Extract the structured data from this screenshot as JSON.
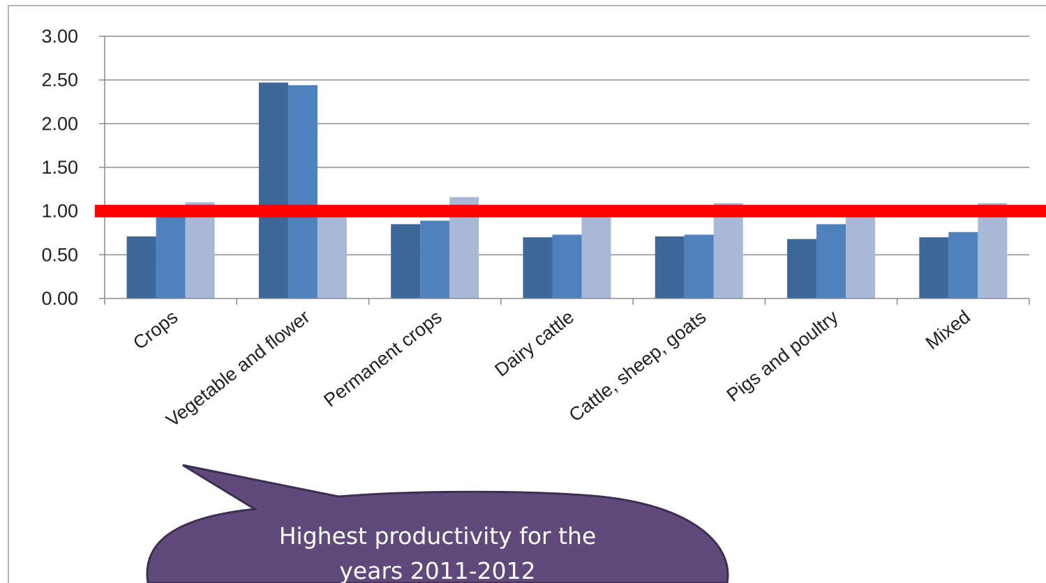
{
  "chart_data": {
    "type": "bar",
    "categories": [
      "Crops",
      "Vegetable and flower",
      "Permanent crops",
      "Dairy cattle",
      "Cattle, sheep, goats",
      "Pigs and poultry",
      "Mixed"
    ],
    "series": [
      {
        "values": [
          0.71,
          2.47,
          0.85,
          0.7,
          0.71,
          0.68,
          0.7
        ]
      },
      {
        "values": [
          1.0,
          2.44,
          0.89,
          0.73,
          0.73,
          0.85,
          0.76
        ]
      },
      {
        "values": [
          1.1,
          0.97,
          1.16,
          1.02,
          1.09,
          1.01,
          1.09
        ]
      }
    ],
    "colors": [
      "#3d6699",
      "#4f81bd",
      "#aab8d7"
    ],
    "ylim": [
      0,
      3.0
    ],
    "yticks": [
      "0.00",
      "0.50",
      "1.00",
      "1.50",
      "2.00",
      "2.50",
      "3.00"
    ],
    "grid": true,
    "reference_line": {
      "value": 1.0,
      "color": "#ff0000"
    },
    "annotation": {
      "lines": [
        "Highest productivity for the",
        "years 2011-2012"
      ],
      "fill": "#604a7b",
      "stroke": "#3c2f52"
    }
  }
}
